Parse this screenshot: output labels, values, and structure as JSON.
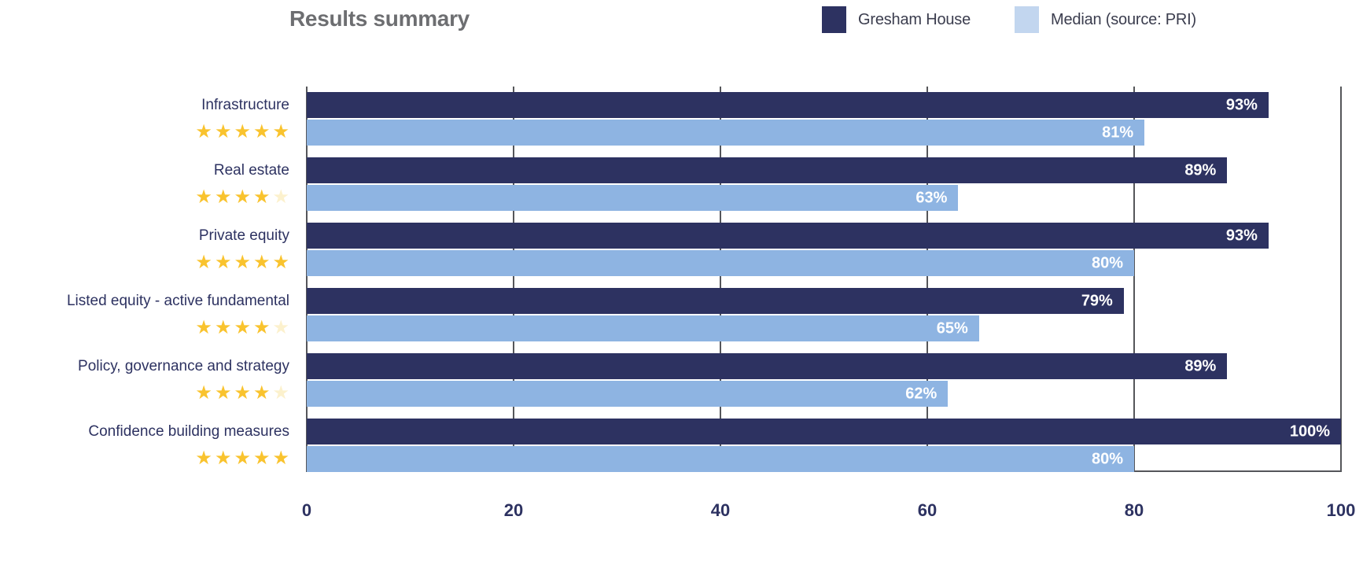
{
  "title": "Results summary",
  "legend": {
    "items": [
      {
        "label": "Gresham House",
        "color": "#2d3261"
      },
      {
        "label": "Median (source: PRI)",
        "color": "#c2d6ef"
      }
    ]
  },
  "chart_data": {
    "type": "bar",
    "orientation": "horizontal",
    "title": "Results summary",
    "categories": [
      "Infrastructure",
      "Real estate",
      "Private equity",
      "Listed equity - active fundamental",
      "Policy, governance and strategy",
      "Confidence building measures"
    ],
    "ratings": [
      5,
      4,
      5,
      4,
      4,
      5
    ],
    "rating_max": 5,
    "series": [
      {
        "name": "Gresham House",
        "color": "#2d3261",
        "values": [
          93,
          89,
          93,
          79,
          89,
          100
        ]
      },
      {
        "name": "Median (source: PRI)",
        "color": "#8eb4e2",
        "values": [
          81,
          63,
          80,
          65,
          62,
          80
        ]
      }
    ],
    "value_suffix": "%",
    "xlim": [
      0,
      100
    ],
    "x_ticks": [
      0,
      20,
      40,
      60,
      80,
      100
    ],
    "grid": true,
    "legend_position": "top-right",
    "star_filled_color": "#f9c32e",
    "star_empty_color": "#fcf1cd"
  }
}
